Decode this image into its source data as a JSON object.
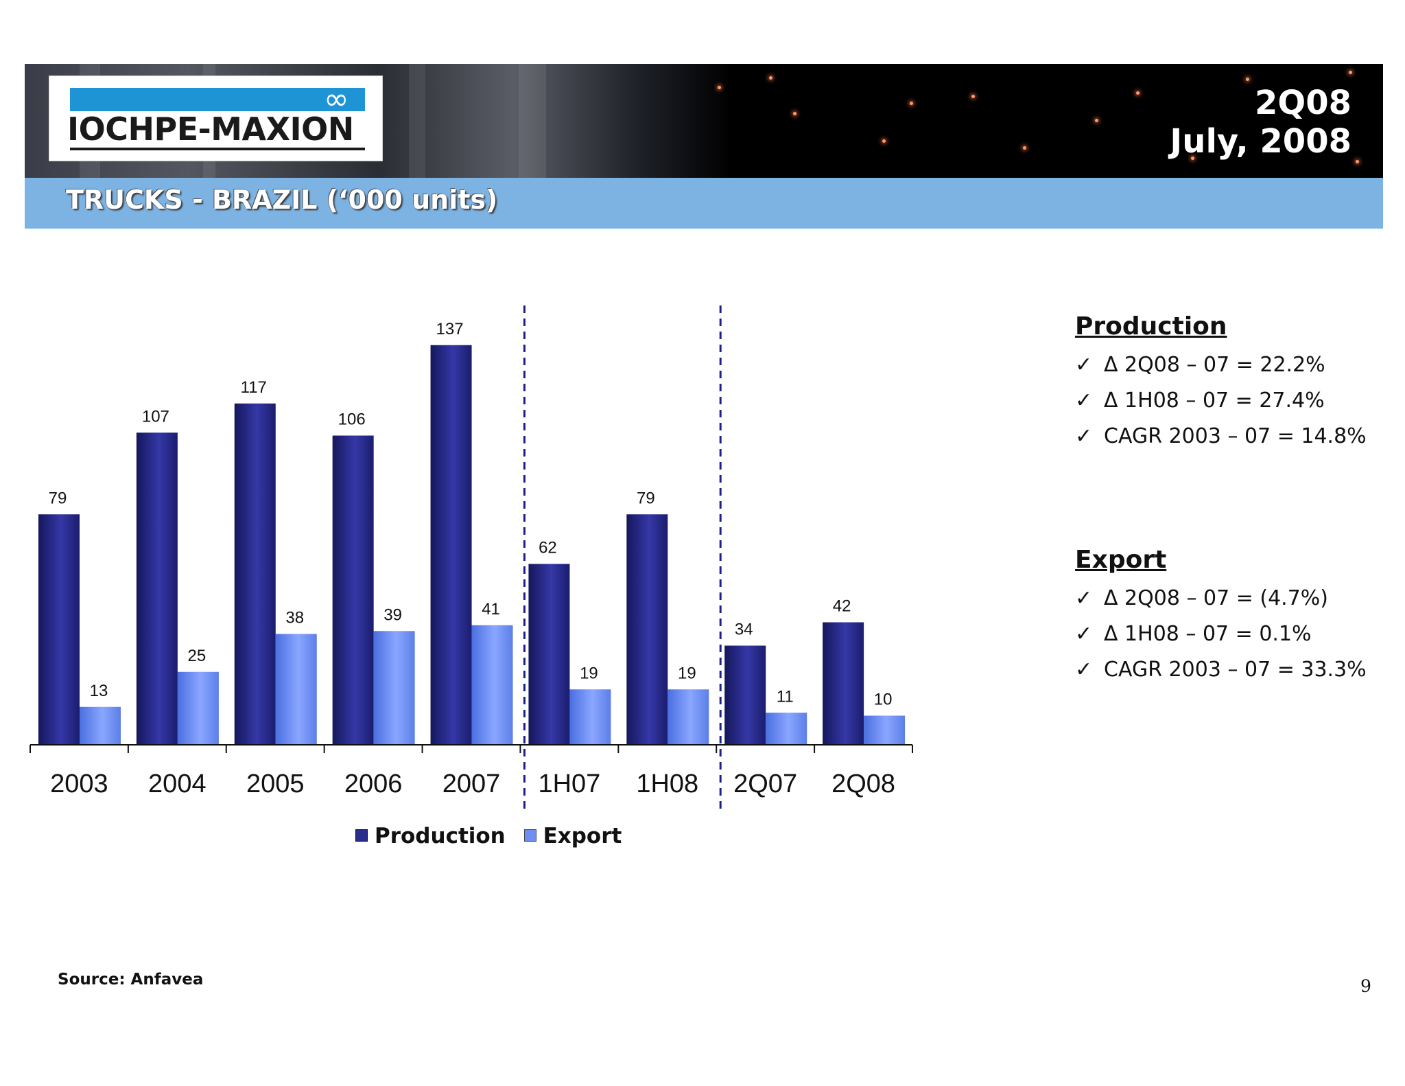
{
  "header": {
    "logo_text": "IOCHPE-MAXION",
    "period_line1": "2Q08",
    "period_line2": "July, 2008"
  },
  "slide_title": "TRUCKS - BRAZIL (‘000 units)",
  "colors": {
    "production": "#2b2d8e",
    "export": "#6e8ef2",
    "title_band": "#7db3e3",
    "divider": "#1a1f8a"
  },
  "chart_data": {
    "type": "bar",
    "categories": [
      "2003",
      "2004",
      "2005",
      "2006",
      "2007",
      "1H07",
      "1H08",
      "2Q07",
      "2Q08"
    ],
    "series": [
      {
        "name": "Production",
        "values": [
          79,
          107,
          117,
          106,
          137,
          62,
          79,
          34,
          42
        ]
      },
      {
        "name": "Export",
        "values": [
          13,
          25,
          38,
          39,
          41,
          19,
          19,
          11,
          10
        ]
      }
    ],
    "ylim": [
      0,
      140
    ],
    "dividers_after": [
      "2007",
      "1H08"
    ],
    "legend": "bottom",
    "grid": false
  },
  "production_box": {
    "title": "Production",
    "items": [
      "Δ 2Q08 – 07 = 22.2%",
      "Δ 1H08 – 07 = 27.4%",
      "CAGR 2003 – 07 = 14.8%"
    ]
  },
  "export_box": {
    "title": "Export",
    "items": [
      "Δ 2Q08 – 07 = (4.7%)",
      "Δ 1H08 – 07 = 0.1%",
      "CAGR 2003 – 07 = 33.3%"
    ]
  },
  "check_glyph": "✓",
  "source": "Source: Anfavea",
  "page_number": "9"
}
